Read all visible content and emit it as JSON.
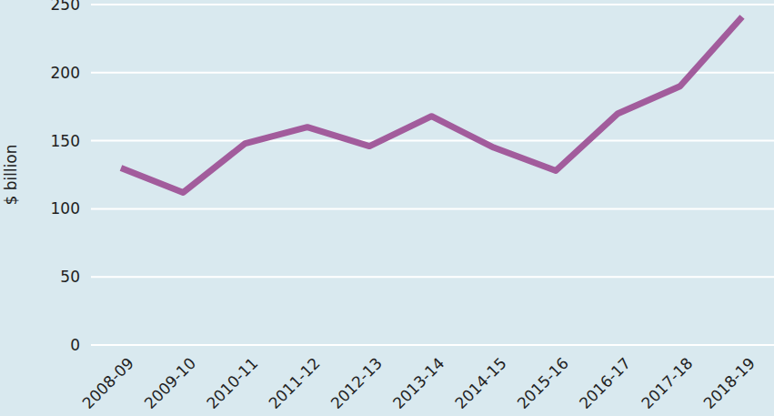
{
  "chart_data": {
    "type": "line",
    "y_label": "$ billion",
    "categories": [
      "2008-09",
      "2009-10",
      "2010-11",
      "2011-12",
      "2012-13",
      "2013-14",
      "2014-15",
      "2015-16",
      "2016-17",
      "2017-18",
      "2018-19"
    ],
    "values": [
      130,
      112,
      148,
      160,
      146,
      168,
      145,
      128,
      170,
      190,
      241
    ],
    "color": "#a25c9c",
    "ylim": [
      0,
      250
    ],
    "yticks": [
      0,
      50,
      100,
      150,
      200,
      250
    ],
    "grid": true
  }
}
